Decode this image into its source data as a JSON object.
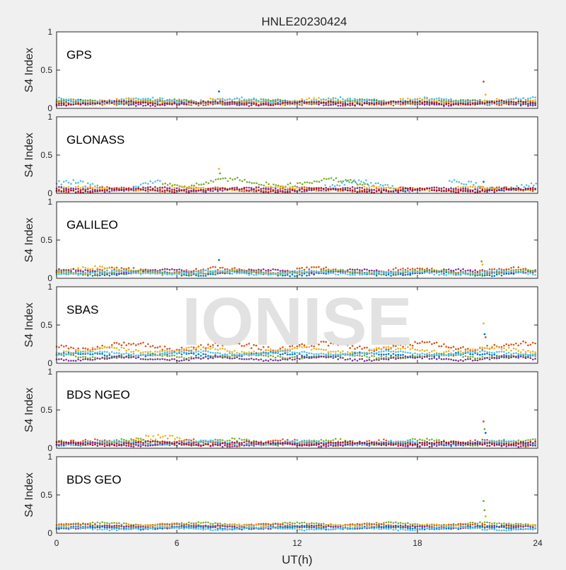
{
  "figure": {
    "title": "HNLE20230424",
    "xlabel": "UT(h)",
    "ylabel": "S4 Index",
    "watermark": "IONISE"
  },
  "colors": {
    "series": [
      "#0072bd",
      "#d95319",
      "#edb120",
      "#7e2f8e",
      "#77ac30",
      "#4dbeee",
      "#a2142f"
    ],
    "axes_bg": "#ffffff",
    "figure_bg": "#f0f0f0",
    "watermark": "#e2e2e2"
  },
  "chart_data": [
    {
      "type": "scatter",
      "label": "GPS",
      "xlim": [
        0,
        24
      ],
      "ylim": [
        0,
        1
      ],
      "xticks": [
        0,
        6,
        12,
        18,
        24
      ],
      "yticks": [
        0,
        0.5,
        1
      ],
      "ytick_labels": [
        "0",
        "0.5",
        "1"
      ],
      "grid": false,
      "series": [
        {
          "color": 0,
          "segments": [
            [
              0,
              24
            ]
          ],
          "base": 0.08,
          "amp": 0.02
        },
        {
          "color": 1,
          "segments": [
            [
              0,
              24
            ]
          ],
          "base": 0.07,
          "amp": 0.02
        },
        {
          "color": 2,
          "segments": [
            [
              0,
              24
            ]
          ],
          "base": 0.09,
          "amp": 0.03
        },
        {
          "color": 3,
          "segments": [
            [
              0,
              24
            ]
          ],
          "base": 0.06,
          "amp": 0.02
        },
        {
          "color": 4,
          "segments": [
            [
              0,
              24
            ]
          ],
          "base": 0.09,
          "amp": 0.02
        },
        {
          "color": 5,
          "segments": [
            [
              0,
              24
            ]
          ],
          "base": 0.1,
          "amp": 0.03
        },
        {
          "color": 6,
          "segments": [
            [
              0,
              24
            ]
          ],
          "base": 0.07,
          "amp": 0.02
        }
      ],
      "spikes": [
        {
          "x": 8.1,
          "y": 0.22,
          "color": 0
        },
        {
          "x": 21.3,
          "y": 0.35,
          "color": 1
        },
        {
          "x": 21.4,
          "y": 0.18,
          "color": 2
        }
      ]
    },
    {
      "type": "scatter",
      "label": "GLONASS",
      "xlim": [
        0,
        24
      ],
      "ylim": [
        0,
        1
      ],
      "xticks": [
        0,
        6,
        12,
        18,
        24
      ],
      "yticks": [
        0,
        0.5,
        1
      ],
      "ytick_labels": [
        "0",
        "0.5",
        "1"
      ],
      "grid": false,
      "series": [
        {
          "color": 5,
          "segments": [
            [
              0,
              5.2
            ],
            [
              13.4,
              17.8
            ],
            [
              19.6,
              24
            ]
          ],
          "base": 0.1,
          "amp": 0.05
        },
        {
          "color": 4,
          "segments": [
            [
              5.3,
              15.5
            ]
          ],
          "base": 0.14,
          "amp": 0.04
        },
        {
          "color": 1,
          "segments": [
            [
              0,
              24
            ]
          ],
          "base": 0.05,
          "amp": 0.02
        },
        {
          "color": 2,
          "segments": [
            [
              0,
              24
            ]
          ],
          "base": 0.06,
          "amp": 0.02
        },
        {
          "color": 3,
          "segments": [
            [
              0,
              24
            ]
          ],
          "base": 0.05,
          "amp": 0.02
        },
        {
          "color": 6,
          "segments": [
            [
              0,
              24
            ]
          ],
          "base": 0.04,
          "amp": 0.02
        }
      ],
      "spikes": [
        {
          "x": 8.1,
          "y": 0.32,
          "color": 2
        },
        {
          "x": 8.15,
          "y": 0.26,
          "color": 4
        },
        {
          "x": 21.3,
          "y": 0.15,
          "color": 0
        }
      ]
    },
    {
      "type": "scatter",
      "label": "GALILEO",
      "xlim": [
        0,
        24
      ],
      "ylim": [
        0,
        1
      ],
      "xticks": [
        0,
        6,
        12,
        18,
        24
      ],
      "yticks": [
        0,
        0.5,
        1
      ],
      "ytick_labels": [
        "0",
        "0.5",
        "1"
      ],
      "grid": false,
      "series": [
        {
          "color": 0,
          "segments": [
            [
              0,
              24
            ]
          ],
          "base": 0.06,
          "amp": 0.02
        },
        {
          "color": 1,
          "segments": [
            [
              0,
              24
            ]
          ],
          "base": 0.1,
          "amp": 0.03
        },
        {
          "color": 2,
          "segments": [
            [
              0,
              4.8
            ]
          ],
          "base": 0.11,
          "amp": 0.03
        },
        {
          "color": 3,
          "segments": [
            [
              0,
              24
            ]
          ],
          "base": 0.09,
          "amp": 0.02
        },
        {
          "color": 4,
          "segments": [
            [
              0,
              24
            ]
          ],
          "base": 0.08,
          "amp": 0.02
        },
        {
          "color": 5,
          "segments": [
            [
              0,
              24
            ]
          ],
          "base": 0.07,
          "amp": 0.02
        }
      ],
      "spikes": [
        {
          "x": 8.1,
          "y": 0.24,
          "color": 0
        },
        {
          "x": 21.2,
          "y": 0.22,
          "color": 4
        },
        {
          "x": 21.25,
          "y": 0.18,
          "color": 2
        }
      ]
    },
    {
      "type": "scatter",
      "label": "SBAS",
      "xlim": [
        0,
        24
      ],
      "ylim": [
        0,
        1
      ],
      "xticks": [
        0,
        6,
        12,
        18,
        24
      ],
      "yticks": [
        0,
        0.5,
        1
      ],
      "ytick_labels": [
        "0",
        "0.5",
        "1"
      ],
      "grid": false,
      "series": [
        {
          "color": 1,
          "segments": [
            [
              0,
              24
            ]
          ],
          "base": 0.22,
          "amp": 0.04
        },
        {
          "color": 2,
          "segments": [
            [
              0,
              24
            ]
          ],
          "base": 0.17,
          "amp": 0.03
        },
        {
          "color": 0,
          "segments": [
            [
              0,
              24
            ]
          ],
          "base": 0.11,
          "amp": 0.02
        },
        {
          "color": 4,
          "segments": [
            [
              0,
              24
            ]
          ],
          "base": 0.09,
          "amp": 0.02
        },
        {
          "color": 3,
          "segments": [
            [
              0,
              24
            ]
          ],
          "base": 0.06,
          "amp": 0.02
        },
        {
          "color": 5,
          "segments": [
            [
              0,
              24
            ]
          ],
          "base": 0.13,
          "amp": 0.02
        }
      ],
      "spikes": [
        {
          "x": 21.3,
          "y": 0.52,
          "color": 2
        },
        {
          "x": 21.35,
          "y": 0.38,
          "color": 0
        },
        {
          "x": 21.4,
          "y": 0.34,
          "color": 1
        }
      ]
    },
    {
      "type": "scatter",
      "label": "BDS NGEO",
      "xlim": [
        0,
        24
      ],
      "ylim": [
        0,
        1
      ],
      "xticks": [
        0,
        6,
        12,
        18,
        24
      ],
      "yticks": [
        0,
        0.5,
        1
      ],
      "ytick_labels": [
        "0",
        "0.5",
        "1"
      ],
      "grid": false,
      "series": [
        {
          "color": 0,
          "segments": [
            [
              0,
              24
            ]
          ],
          "base": 0.06,
          "amp": 0.02
        },
        {
          "color": 1,
          "segments": [
            [
              0,
              24
            ]
          ],
          "base": 0.07,
          "amp": 0.03
        },
        {
          "color": 2,
          "segments": [
            [
              3.5,
              7.5
            ]
          ],
          "base": 0.1,
          "amp": 0.05
        },
        {
          "color": 4,
          "segments": [
            [
              0,
              24
            ]
          ],
          "base": 0.08,
          "amp": 0.03
        },
        {
          "color": 5,
          "segments": [
            [
              0,
              24
            ]
          ],
          "base": 0.07,
          "amp": 0.02
        },
        {
          "color": 3,
          "segments": [
            [
              0,
              24
            ]
          ],
          "base": 0.05,
          "amp": 0.02
        },
        {
          "color": 6,
          "segments": [
            [
              0,
              24
            ]
          ],
          "base": 0.06,
          "amp": 0.02
        }
      ],
      "spikes": [
        {
          "x": 21.3,
          "y": 0.35,
          "color": 1
        },
        {
          "x": 21.35,
          "y": 0.25,
          "color": 4
        },
        {
          "x": 21.4,
          "y": 0.2,
          "color": 0
        }
      ]
    },
    {
      "type": "scatter",
      "label": "BDS GEO",
      "xlim": [
        0,
        24
      ],
      "ylim": [
        0,
        1
      ],
      "xticks": [
        0,
        6,
        12,
        18,
        24
      ],
      "yticks": [
        0,
        0.5,
        1
      ],
      "ytick_labels": [
        "0",
        "0.5",
        "1"
      ],
      "grid": false,
      "series": [
        {
          "color": 4,
          "segments": [
            [
              0,
              24
            ]
          ],
          "base": 0.12,
          "amp": 0.015
        },
        {
          "color": 1,
          "segments": [
            [
              0,
              24
            ]
          ],
          "base": 0.1,
          "amp": 0.015
        },
        {
          "color": 2,
          "segments": [
            [
              0,
              24
            ]
          ],
          "base": 0.09,
          "amp": 0.015
        },
        {
          "color": 3,
          "segments": [
            [
              0,
              24
            ]
          ],
          "base": 0.08,
          "amp": 0.015
        },
        {
          "color": 0,
          "segments": [
            [
              0,
              24
            ]
          ],
          "base": 0.07,
          "amp": 0.015
        },
        {
          "color": 5,
          "segments": [
            [
              0,
              24
            ]
          ],
          "base": 0.06,
          "amp": 0.015
        }
      ],
      "spikes": [
        {
          "x": 21.3,
          "y": 0.42,
          "color": 4
        },
        {
          "x": 21.35,
          "y": 0.3,
          "color": 4
        },
        {
          "x": 21.4,
          "y": 0.22,
          "color": 2
        }
      ]
    }
  ]
}
